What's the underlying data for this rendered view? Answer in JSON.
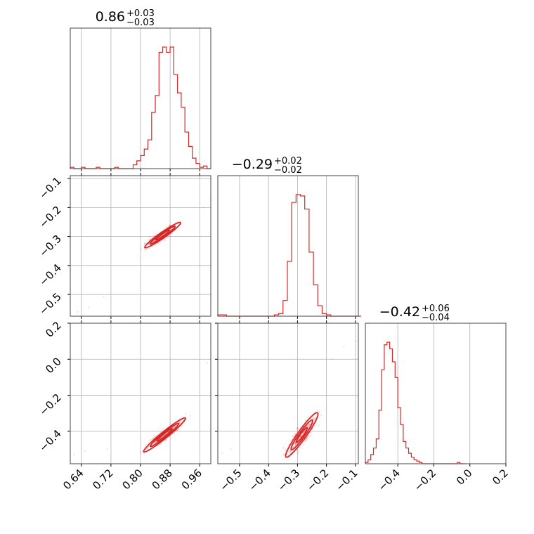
{
  "chart_data": {
    "type": "corner",
    "parameters": [
      {
        "title_value": "0.86",
        "title_plus": "+0.03",
        "title_minus": "−0.03",
        "range": [
          0.61,
          0.99
        ],
        "ticks": [
          0.64,
          0.72,
          0.8,
          0.88,
          0.96
        ],
        "tick_labels": [
          "0.64",
          "0.72",
          "0.80",
          "0.88",
          "0.96"
        ]
      },
      {
        "title_value": "−0.29",
        "title_plus": "+0.02",
        "title_minus": "−0.02",
        "range": [
          -0.575,
          -0.09
        ],
        "ticks": [
          -0.5,
          -0.4,
          -0.3,
          -0.2,
          -0.1
        ],
        "tick_labels": [
          "−0.5",
          "−0.4",
          "−0.3",
          "−0.2",
          "−0.1"
        ]
      },
      {
        "title_value": "−0.42",
        "title_plus": "+0.06",
        "title_minus": "−0.04",
        "range": [
          -0.58,
          0.2
        ],
        "ticks": [
          -0.4,
          -0.2,
          0.0,
          0.2
        ],
        "tick_labels": [
          "−0.4",
          "−0.2",
          "0.0",
          "0.2"
        ]
      }
    ],
    "histograms": [
      {
        "param": 0,
        "x": [
          0.61,
          0.62,
          0.63,
          0.64,
          0.65,
          0.66,
          0.67,
          0.68,
          0.69,
          0.7,
          0.71,
          0.72,
          0.73,
          0.74,
          0.75,
          0.76,
          0.77,
          0.78,
          0.79,
          0.8,
          0.81,
          0.82,
          0.83,
          0.84,
          0.85,
          0.86,
          0.87,
          0.88,
          0.89,
          0.9,
          0.91,
          0.92,
          0.93,
          0.94,
          0.95,
          0.96,
          0.97,
          0.98
        ],
        "counts": [
          0.01,
          0.0,
          0.0,
          0.01,
          0.0,
          0.0,
          0.0,
          0.01,
          0.0,
          0.0,
          0.0,
          0.0,
          0.01,
          0.0,
          0.0,
          0.0,
          0.0,
          0.03,
          0.06,
          0.1,
          0.15,
          0.22,
          0.43,
          0.56,
          0.89,
          0.93,
          0.89,
          0.93,
          0.72,
          0.58,
          0.47,
          0.28,
          0.17,
          0.08,
          0.04,
          0.01,
          0.02,
          0.0
        ]
      },
      {
        "param": 1,
        "x": [
          -0.575,
          -0.56,
          -0.545,
          -0.53,
          -0.515,
          -0.5,
          -0.485,
          -0.47,
          -0.455,
          -0.44,
          -0.425,
          -0.41,
          -0.395,
          -0.38,
          -0.365,
          -0.35,
          -0.335,
          -0.32,
          -0.305,
          -0.29,
          -0.275,
          -0.26,
          -0.245,
          -0.23,
          -0.215,
          -0.2,
          -0.185,
          -0.17,
          -0.155,
          -0.14,
          -0.125,
          -0.11,
          -0.095
        ],
        "counts": [
          0.01,
          0.01,
          0.0,
          0.0,
          0.0,
          0.0,
          0.0,
          0.0,
          0.0,
          0.0,
          0.0,
          0.0,
          0.0,
          0.01,
          0.02,
          0.12,
          0.42,
          0.87,
          0.93,
          0.92,
          0.82,
          0.49,
          0.24,
          0.08,
          0.02,
          0.01,
          0.0,
          0.0,
          0.0,
          0.0,
          0.0,
          0.0,
          0.0
        ]
      },
      {
        "param": 2,
        "x": [
          -0.58,
          -0.565,
          -0.55,
          -0.535,
          -0.52,
          -0.505,
          -0.49,
          -0.475,
          -0.46,
          -0.445,
          -0.43,
          -0.415,
          -0.4,
          -0.385,
          -0.37,
          -0.355,
          -0.34,
          -0.325,
          -0.31,
          -0.295,
          -0.28,
          -0.265,
          -0.25,
          -0.235,
          -0.22,
          -0.205,
          -0.19,
          -0.175,
          -0.16,
          -0.145,
          -0.13,
          -0.115,
          -0.1,
          -0.085,
          -0.07,
          -0.055,
          -0.04
        ],
        "counts": [
          0.01,
          0.03,
          0.07,
          0.12,
          0.19,
          0.41,
          0.72,
          0.91,
          0.93,
          0.88,
          0.78,
          0.66,
          0.43,
          0.3,
          0.17,
          0.12,
          0.08,
          0.05,
          0.03,
          0.02,
          0.01,
          0.0,
          0.0,
          0.0,
          0.0,
          0.0,
          0.0,
          0.0,
          0.0,
          0.0,
          0.0,
          0.0,
          0.0,
          0.0,
          0.01,
          0.0,
          0.0
        ]
      }
    ],
    "pairs": [
      {
        "x_param": 0,
        "y_param": 1,
        "center": [
          0.86,
          -0.295
        ],
        "slope": 0.9,
        "contours": [
          {
            "half_length": 0.065,
            "half_width": 0.009
          },
          {
            "half_length": 0.045,
            "half_width": 0.006
          },
          {
            "half_length": 0.025,
            "half_width": 0.0035
          }
        ],
        "outliers": [
          [
            0.66,
            -0.545
          ],
          [
            0.7,
            -0.51
          ],
          [
            0.63,
            -0.56
          ],
          [
            0.99,
            -0.17
          ],
          [
            0.97,
            -0.2
          ]
        ]
      },
      {
        "x_param": 0,
        "y_param": 2,
        "center": [
          0.865,
          -0.42
        ],
        "slope": 1.7,
        "contours": [
          {
            "half_length": 0.11,
            "half_width": 0.012
          },
          {
            "half_length": 0.075,
            "half_width": 0.008
          },
          {
            "half_length": 0.04,
            "half_width": 0.0045
          }
        ],
        "outliers": [
          [
            0.65,
            -0.51
          ],
          [
            0.99,
            0.09
          ],
          [
            0.98,
            -0.02
          ],
          [
            0.71,
            -0.5
          ],
          [
            0.62,
            -0.53
          ]
        ]
      },
      {
        "x_param": 1,
        "y_param": 2,
        "center": [
          -0.285,
          -0.42
        ],
        "slope": 2.3,
        "contours": [
          {
            "half_length": 0.135,
            "half_width": 0.017
          },
          {
            "half_length": 0.09,
            "half_width": 0.011
          },
          {
            "half_length": 0.045,
            "half_width": 0.006
          }
        ],
        "outliers": [
          [
            -0.53,
            -0.5
          ],
          [
            -0.1,
            0.1
          ],
          [
            -0.18,
            0.0
          ],
          [
            -0.14,
            0.07
          ],
          [
            -0.56,
            -0.52
          ]
        ]
      }
    ],
    "grid": true,
    "color": "#d62728"
  }
}
